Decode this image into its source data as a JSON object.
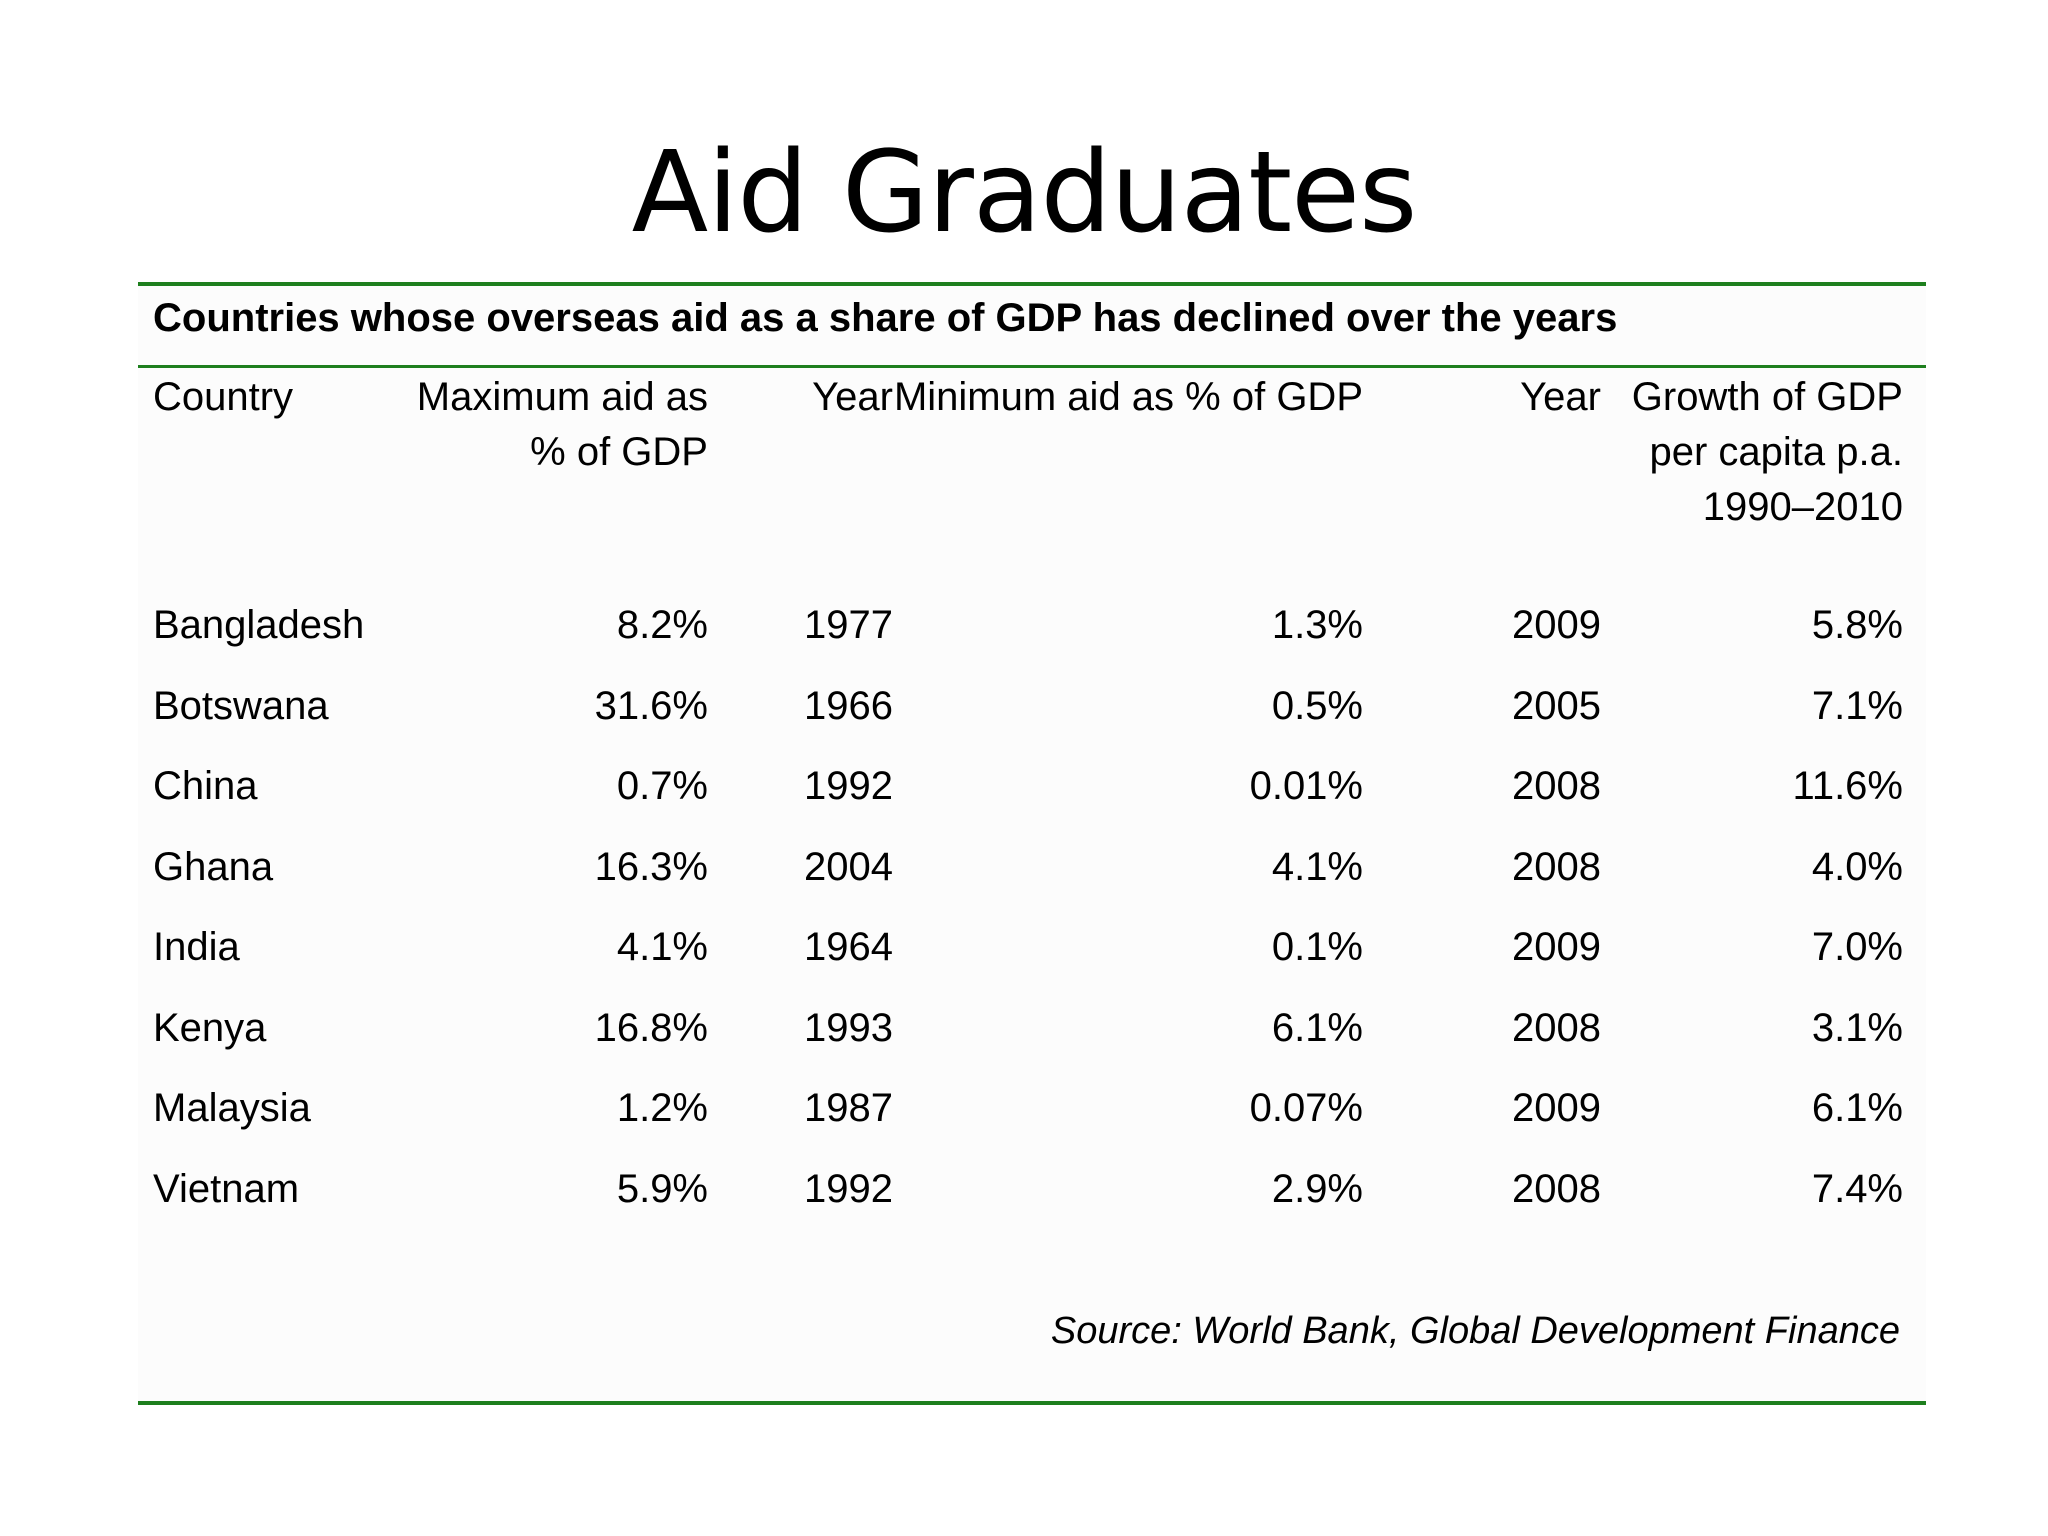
{
  "slide": {
    "title": "Aid Graduates"
  },
  "table": {
    "caption": "Countries whose overseas aid as a share of GDP has declined over the years",
    "headers": {
      "country": "Country",
      "max_aid": "Maximum aid as % of GDP",
      "year_max": "Year",
      "min_aid": "Minimum aid as % of GDP",
      "year_min": "Year",
      "growth": "Growth of GDP per capita p.a. 1990–2010"
    },
    "rows": [
      {
        "country": "Bangladesh",
        "max_aid": "8.2%",
        "year_max": "1977",
        "min_aid": "1.3%",
        "year_min": "2009",
        "growth": "5.8%"
      },
      {
        "country": "Botswana",
        "max_aid": "31.6%",
        "year_max": "1966",
        "min_aid": "0.5%",
        "year_min": "2005",
        "growth": "7.1%"
      },
      {
        "country": "China",
        "max_aid": "0.7%",
        "year_max": "1992",
        "min_aid": "0.01%",
        "year_min": "2008",
        "growth": "11.6%"
      },
      {
        "country": "Ghana",
        "max_aid": "16.3%",
        "year_max": "2004",
        "min_aid": "4.1%",
        "year_min": "2008",
        "growth": "4.0%"
      },
      {
        "country": "India",
        "max_aid": "4.1%",
        "year_max": "1964",
        "min_aid": "0.1%",
        "year_min": "2009",
        "growth": "7.0%"
      },
      {
        "country": "Kenya",
        "max_aid": "16.8%",
        "year_max": "1993",
        "min_aid": "6.1%",
        "year_min": "2008",
        "growth": "3.1%"
      },
      {
        "country": "Malaysia",
        "max_aid": "1.2%",
        "year_max": "1987",
        "min_aid": "0.07%",
        "year_min": "2009",
        "growth": "6.1%"
      },
      {
        "country": "Vietnam",
        "max_aid": "5.9%",
        "year_max": "1992",
        "min_aid": "2.9%",
        "year_min": "2008",
        "growth": "7.4%"
      }
    ],
    "source": "Source: World Bank, Global Development Finance"
  },
  "colors": {
    "rule": "#1e7f1e",
    "text": "#000000",
    "background": "#ffffff"
  }
}
